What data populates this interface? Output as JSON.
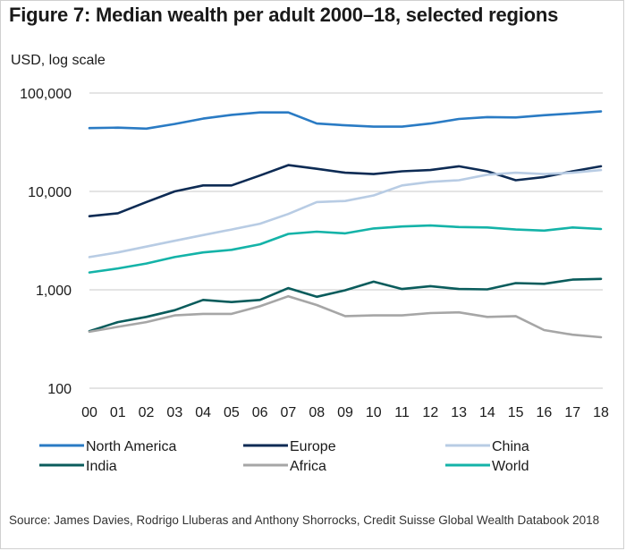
{
  "title": "Figure 7: Median wealth per adult 2000–18, selected regions",
  "unit_label": "USD, log scale",
  "source": "Source: James Davies, Rodrigo Lluberas and Anthony Shorrocks, Credit Suisse Global Wealth Databook 2018",
  "chart_data": {
    "type": "line",
    "title": "Figure 7: Median wealth per adult 2000–18, selected regions",
    "xlabel": "",
    "ylabel": "USD, log scale",
    "yscale": "log",
    "ylim": [
      100,
      100000
    ],
    "yticks": [
      100,
      1000,
      10000,
      100000
    ],
    "ytick_labels": [
      "100",
      "1,000",
      "10,000",
      "100,000"
    ],
    "grid": "horizontal",
    "legend_position": "bottom",
    "categories": [
      "00",
      "01",
      "02",
      "03",
      "04",
      "05",
      "06",
      "07",
      "08",
      "09",
      "10",
      "11",
      "12",
      "13",
      "14",
      "15",
      "16",
      "17",
      "18"
    ],
    "series": [
      {
        "name": "North America",
        "color": "#2a7bc4",
        "values": [
          44000,
          44500,
          43500,
          48500,
          55000,
          60000,
          63500,
          63500,
          49000,
          47000,
          45500,
          45500,
          49000,
          54500,
          57000,
          56500,
          59500,
          62000,
          65000
        ]
      },
      {
        "name": "Europe",
        "color": "#0d2b54",
        "values": [
          5600,
          6000,
          7800,
          10000,
          11500,
          11500,
          14500,
          18500,
          17000,
          15500,
          15000,
          16000,
          16500,
          18000,
          16000,
          13000,
          14000,
          16000,
          18000
        ]
      },
      {
        "name": "China",
        "color": "#b8cce4",
        "values": [
          2150,
          2400,
          2750,
          3150,
          3600,
          4100,
          4700,
          5900,
          7800,
          8000,
          9100,
          11500,
          12500,
          13000,
          14800,
          15500,
          15000,
          15500,
          16500
        ]
      },
      {
        "name": "India",
        "color": "#0a5c5c",
        "values": [
          380,
          470,
          530,
          620,
          790,
          750,
          790,
          1040,
          850,
          990,
          1210,
          1020,
          1090,
          1020,
          1010,
          1170,
          1150,
          1270,
          1290
        ]
      },
      {
        "name": "Africa",
        "color": "#a6a6a6",
        "values": [
          375,
          420,
          470,
          550,
          570,
          570,
          680,
          860,
          700,
          540,
          550,
          550,
          580,
          590,
          530,
          540,
          390,
          350,
          330
        ]
      },
      {
        "name": "World",
        "color": "#14b3a8",
        "values": [
          1500,
          1650,
          1850,
          2150,
          2400,
          2550,
          2900,
          3700,
          3900,
          3750,
          4200,
          4400,
          4500,
          4350,
          4300,
          4100,
          4000,
          4300,
          4150
        ]
      }
    ]
  }
}
